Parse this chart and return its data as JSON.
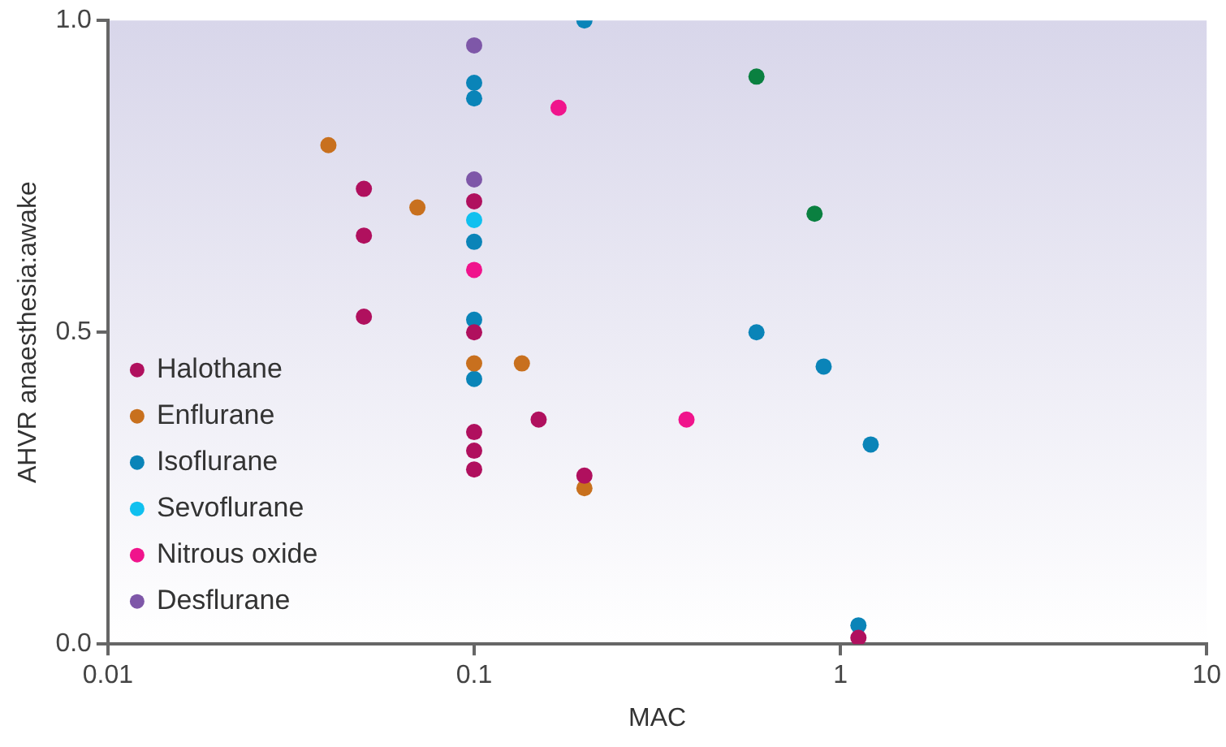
{
  "chart_data": {
    "type": "scatter",
    "xlabel": "MAC",
    "ylabel": "AHVR anaesthesia:awake",
    "log": "x",
    "grid": false,
    "legend": "bottom left",
    "marker": "circle",
    "xlim": [
      0.01,
      10
    ],
    "xticks": [
      0.01,
      0.1,
      1,
      10
    ],
    "ylim": [
      0,
      1
    ],
    "yticks": [
      {
        "value": 0,
        "label": "0.0"
      },
      {
        "value": 0.5,
        "label": "0.5"
      },
      {
        "value": 1,
        "label": "1.0"
      }
    ],
    "series": [
      {
        "name": "Halothane",
        "color": "#b0105e",
        "x": [
          0.05,
          0.05,
          0.05,
          0.1,
          0.1,
          0.1,
          0.1,
          0.1,
          0.15,
          0.2,
          1.12
        ],
        "values": [
          0.73,
          0.655,
          0.525,
          0.71,
          0.5,
          0.34,
          0.31,
          0.28,
          0.36,
          0.27,
          0.01
        ]
      },
      {
        "name": "Enflurane",
        "color": "#c8701e",
        "x": [
          0.04,
          0.07,
          0.1,
          0.135,
          0.2
        ],
        "values": [
          0.8,
          0.7,
          0.45,
          0.45,
          0.25
        ]
      },
      {
        "name": "Isoflurane",
        "color": "#0a84b8",
        "x": [
          0.2,
          0.1,
          0.1,
          0.1,
          0.1,
          0.1,
          0.59,
          0.9,
          1.21,
          1.12
        ],
        "values": [
          1.0,
          0.9,
          0.875,
          0.645,
          0.52,
          0.425,
          0.5,
          0.445,
          0.32,
          0.03
        ]
      },
      {
        "name": "Sevoflurane",
        "color": "#10c0ef",
        "x": [
          0.1
        ],
        "values": [
          0.68
        ]
      },
      {
        "name": "Nitrous oxide",
        "color": "#f0148c",
        "x": [
          0.17,
          0.1,
          0.38
        ],
        "values": [
          0.86,
          0.6,
          0.36
        ]
      },
      {
        "name": "Desflurane",
        "color": "#7e57a8",
        "x": [
          0.1,
          0.1
        ],
        "values": [
          0.96,
          0.745
        ]
      },
      {
        "color": "#0a8040",
        "x": [
          0.59,
          0.85
        ],
        "values": [
          0.91,
          0.69
        ]
      }
    ]
  }
}
